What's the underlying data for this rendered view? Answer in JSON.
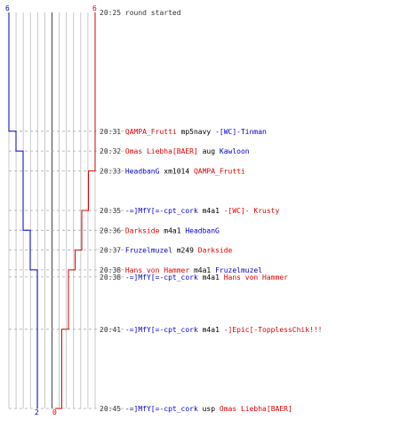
{
  "chart_data": {
    "type": "line",
    "ylim": [
      0,
      6
    ],
    "colors": {
      "blue": "#0000cc",
      "red": "#dd0000",
      "grid": "#bbbbbb",
      "grid_dark": "#555555",
      "dash": "#aaaaaa",
      "time": "#333333",
      "plain": "#000000"
    },
    "top_labels": {
      "blue": "6",
      "red": "6"
    },
    "bottom_labels": {
      "blue": "2",
      "red": "0"
    },
    "series": [
      {
        "color": "blue",
        "x": [
          "20:25",
          "20:31",
          "20:32",
          "20:36",
          "20:38",
          "20:45"
        ],
        "values": [
          6,
          5,
          4,
          3,
          2,
          2
        ]
      },
      {
        "color": "red",
        "x": [
          "20:25",
          "20:33",
          "20:35",
          "20:37",
          "20:38",
          "20:41",
          "20:45"
        ],
        "values": [
          6,
          5,
          4,
          3,
          2,
          1,
          0
        ]
      }
    ],
    "events": [
      {
        "time": "20:25",
        "parts": [
          {
            "t": "round started",
            "c": "time"
          }
        ]
      },
      {
        "time": "20:31",
        "parts": [
          {
            "t": "QAMPA_Frutti",
            "c": "red"
          },
          {
            "t": " mp5navy ",
            "c": "plain"
          },
          {
            "t": "-[WC]-Tinman",
            "c": "blue"
          }
        ]
      },
      {
        "time": "20:32",
        "parts": [
          {
            "t": "Omas Liebha[BAER]",
            "c": "red"
          },
          {
            "t": " aug ",
            "c": "plain"
          },
          {
            "t": "Kawloon",
            "c": "blue"
          }
        ]
      },
      {
        "time": "20:33",
        "parts": [
          {
            "t": "HeadbanG",
            "c": "blue"
          },
          {
            "t": " xm1014 ",
            "c": "plain"
          },
          {
            "t": "QAMPA_Frutti",
            "c": "red"
          }
        ]
      },
      {
        "time": "20:35",
        "parts": [
          {
            "t": "-=]MfY[=-cpt_cork",
            "c": "blue"
          },
          {
            "t": " m4a1 ",
            "c": "plain"
          },
          {
            "t": "-[WC]- Krusty",
            "c": "red"
          }
        ]
      },
      {
        "time": "20:36",
        "parts": [
          {
            "t": "Darkside",
            "c": "red"
          },
          {
            "t": " m4a1 ",
            "c": "plain"
          },
          {
            "t": "HeadbanG",
            "c": "blue"
          }
        ]
      },
      {
        "time": "20:37",
        "parts": [
          {
            "t": "Fruzelmuzel",
            "c": "blue"
          },
          {
            "t": " m249 ",
            "c": "plain"
          },
          {
            "t": "Darkside",
            "c": "red"
          }
        ]
      },
      {
        "time": "20:38",
        "parts": [
          {
            "t": "Hans von Hammer",
            "c": "red"
          },
          {
            "t": " m4a1 ",
            "c": "plain"
          },
          {
            "t": "Fruzelmuzel",
            "c": "blue"
          }
        ]
      },
      {
        "time": "20:38",
        "parts": [
          {
            "t": "-=]MfY[=-cpt_cork",
            "c": "blue"
          },
          {
            "t": " m4a1 ",
            "c": "plain"
          },
          {
            "t": "Hans von Hammer",
            "c": "red"
          }
        ]
      },
      {
        "time": "20:41",
        "parts": [
          {
            "t": "-=]MfY[=-cpt_cork",
            "c": "blue"
          },
          {
            "t": " m4a1 ",
            "c": "plain"
          },
          {
            "t": "-]Epic[-TopplessChik!!!",
            "c": "red"
          }
        ]
      },
      {
        "time": "20:45",
        "parts": [
          {
            "t": "-=]MfY[=-cpt_cork",
            "c": "blue"
          },
          {
            "t": " usp ",
            "c": "plain"
          },
          {
            "t": "Omas Liebha[BAER]",
            "c": "red"
          }
        ]
      }
    ]
  }
}
